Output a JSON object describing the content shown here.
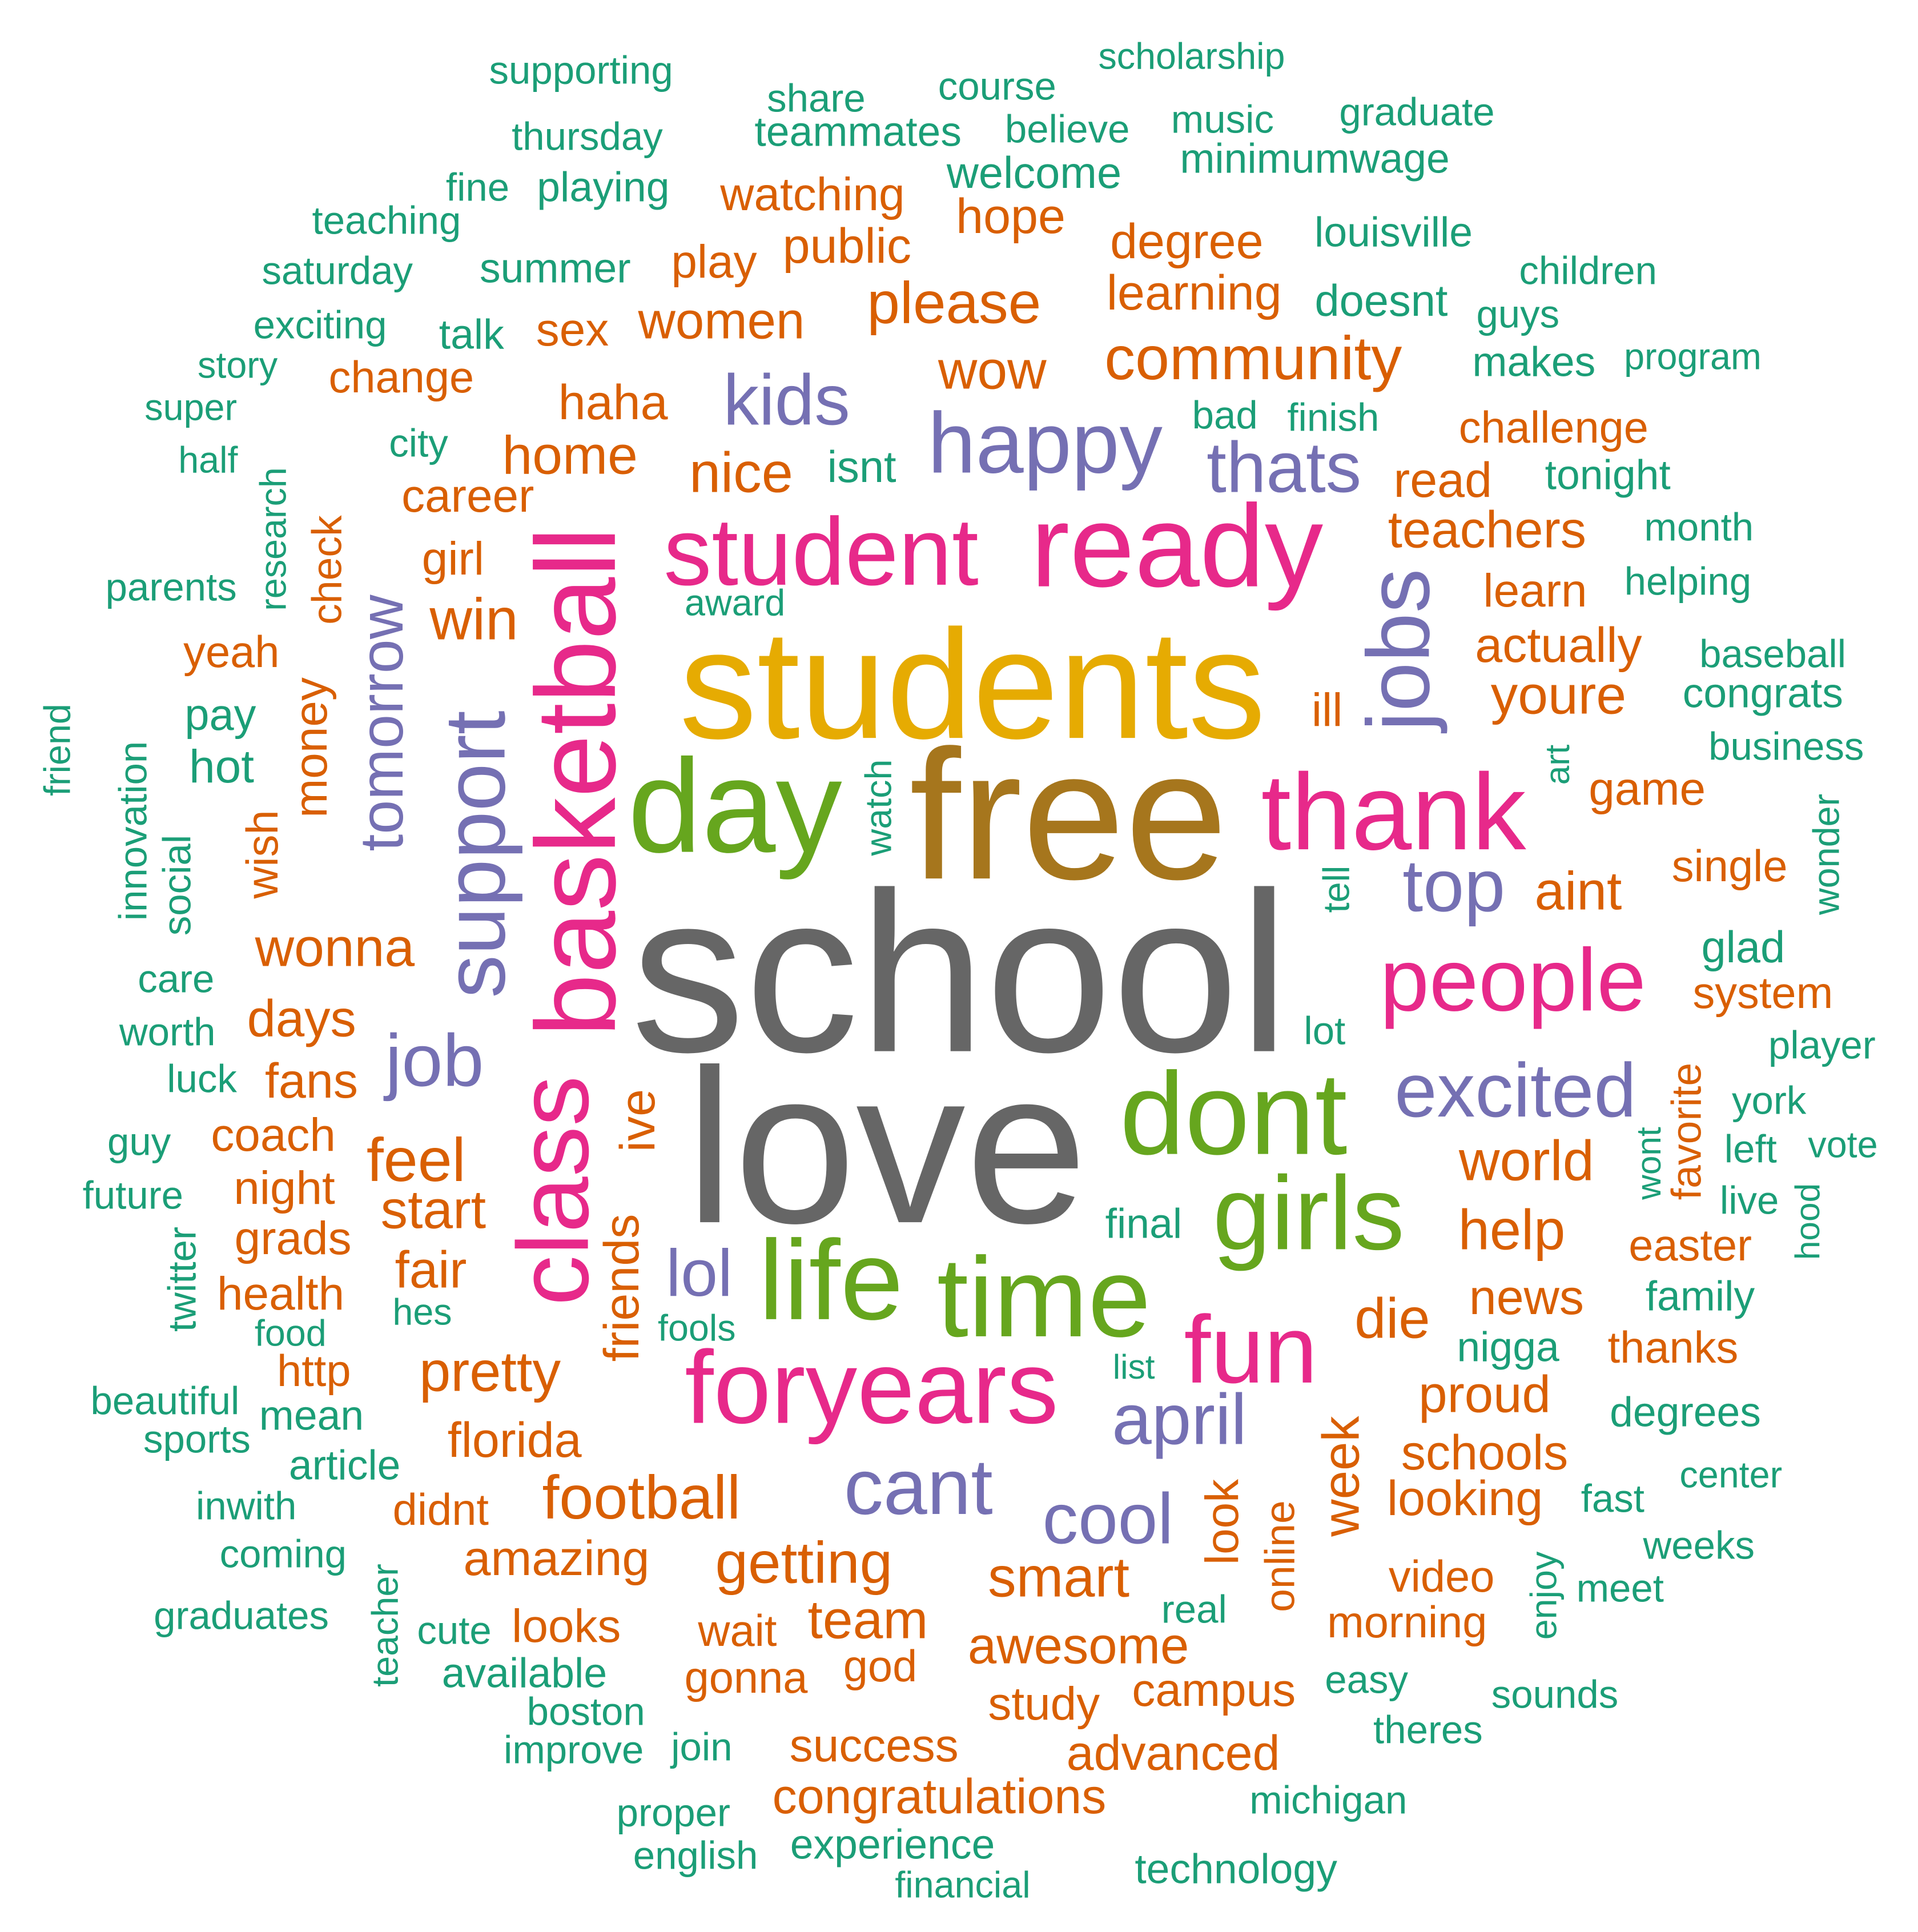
{
  "palette": {
    "gray": "#666666",
    "olive": "#a6761d",
    "gold": "#e6ab02",
    "green": "#66a61e",
    "pink": "#e7298a",
    "purple": "#7570b3",
    "orange": "#d95f02",
    "teal": "#1b9e77"
  },
  "words": [
    {
      "text": "school",
      "color": "gray"
    },
    {
      "text": "love",
      "color": "gray"
    },
    {
      "text": "free",
      "color": "olive"
    },
    {
      "text": "students",
      "color": "gold"
    },
    {
      "text": "day",
      "color": "green"
    },
    {
      "text": "dont",
      "color": "green"
    },
    {
      "text": "girls",
      "color": "green"
    },
    {
      "text": "life",
      "color": "green"
    },
    {
      "text": "time",
      "color": "green"
    },
    {
      "text": "ready",
      "color": "pink"
    },
    {
      "text": "student",
      "color": "pink"
    },
    {
      "text": "thank",
      "color": "pink"
    },
    {
      "text": "people",
      "color": "pink"
    },
    {
      "text": "basketball",
      "color": "pink"
    },
    {
      "text": "class",
      "color": "pink"
    },
    {
      "text": "foryears",
      "color": "pink"
    },
    {
      "text": "fun",
      "color": "pink"
    },
    {
      "text": "happy",
      "color": "purple"
    },
    {
      "text": "kids",
      "color": "purple"
    },
    {
      "text": "thats",
      "color": "purple"
    },
    {
      "text": "jobs",
      "color": "purple"
    },
    {
      "text": "support",
      "color": "purple"
    },
    {
      "text": "tomorrow",
      "color": "purple"
    },
    {
      "text": "job",
      "color": "purple"
    },
    {
      "text": "top",
      "color": "purple"
    },
    {
      "text": "excited",
      "color": "purple"
    },
    {
      "text": "lol",
      "color": "purple"
    },
    {
      "text": "april",
      "color": "purple"
    },
    {
      "text": "cant",
      "color": "purple"
    },
    {
      "text": "cool",
      "color": "purple"
    },
    {
      "text": "watching",
      "color": "orange"
    },
    {
      "text": "hope",
      "color": "orange"
    },
    {
      "text": "degree",
      "color": "orange"
    },
    {
      "text": "play",
      "color": "orange"
    },
    {
      "text": "public",
      "color": "orange"
    },
    {
      "text": "please",
      "color": "orange"
    },
    {
      "text": "learning",
      "color": "orange"
    },
    {
      "text": "sex",
      "color": "orange"
    },
    {
      "text": "women",
      "color": "orange"
    },
    {
      "text": "change",
      "color": "orange"
    },
    {
      "text": "community",
      "color": "orange"
    },
    {
      "text": "wow",
      "color": "orange"
    },
    {
      "text": "haha",
      "color": "orange"
    },
    {
      "text": "challenge",
      "color": "orange"
    },
    {
      "text": "home",
      "color": "orange"
    },
    {
      "text": "nice",
      "color": "orange"
    },
    {
      "text": "read",
      "color": "orange"
    },
    {
      "text": "career",
      "color": "orange"
    },
    {
      "text": "teachers",
      "color": "orange"
    },
    {
      "text": "girl",
      "color": "orange"
    },
    {
      "text": "learn",
      "color": "orange"
    },
    {
      "text": "win",
      "color": "orange"
    },
    {
      "text": "actually",
      "color": "orange"
    },
    {
      "text": "yeah",
      "color": "orange"
    },
    {
      "text": "check",
      "color": "orange"
    },
    {
      "text": "youre",
      "color": "orange"
    },
    {
      "text": "ill",
      "color": "orange"
    },
    {
      "text": "money",
      "color": "orange"
    },
    {
      "text": "game",
      "color": "orange"
    },
    {
      "text": "wish",
      "color": "orange"
    },
    {
      "text": "aint",
      "color": "orange"
    },
    {
      "text": "single",
      "color": "orange"
    },
    {
      "text": "wonna",
      "color": "orange"
    },
    {
      "text": "system",
      "color": "orange"
    },
    {
      "text": "days",
      "color": "orange"
    },
    {
      "text": "fans",
      "color": "orange"
    },
    {
      "text": "favorite",
      "color": "orange"
    },
    {
      "text": "coach",
      "color": "orange"
    },
    {
      "text": "ive",
      "color": "orange"
    },
    {
      "text": "feel",
      "color": "orange"
    },
    {
      "text": "world",
      "color": "orange"
    },
    {
      "text": "night",
      "color": "orange"
    },
    {
      "text": "start",
      "color": "orange"
    },
    {
      "text": "help",
      "color": "orange"
    },
    {
      "text": "grads",
      "color": "orange"
    },
    {
      "text": "friends",
      "color": "orange"
    },
    {
      "text": "easter",
      "color": "orange"
    },
    {
      "text": "fair",
      "color": "orange"
    },
    {
      "text": "health",
      "color": "orange"
    },
    {
      "text": "news",
      "color": "orange"
    },
    {
      "text": "die",
      "color": "orange"
    },
    {
      "text": "http",
      "color": "orange"
    },
    {
      "text": "pretty",
      "color": "orange"
    },
    {
      "text": "thanks",
      "color": "orange"
    },
    {
      "text": "proud",
      "color": "orange"
    },
    {
      "text": "florida",
      "color": "orange"
    },
    {
      "text": "week",
      "color": "orange"
    },
    {
      "text": "schools",
      "color": "orange"
    },
    {
      "text": "football",
      "color": "orange"
    },
    {
      "text": "didnt",
      "color": "orange"
    },
    {
      "text": "looking",
      "color": "orange"
    },
    {
      "text": "look",
      "color": "orange"
    },
    {
      "text": "online",
      "color": "orange"
    },
    {
      "text": "amazing",
      "color": "orange"
    },
    {
      "text": "getting",
      "color": "orange"
    },
    {
      "text": "smart",
      "color": "orange"
    },
    {
      "text": "video",
      "color": "orange"
    },
    {
      "text": "looks",
      "color": "orange"
    },
    {
      "text": "wait",
      "color": "orange"
    },
    {
      "text": "team",
      "color": "orange"
    },
    {
      "text": "morning",
      "color": "orange"
    },
    {
      "text": "awesome",
      "color": "orange"
    },
    {
      "text": "gonna",
      "color": "orange"
    },
    {
      "text": "god",
      "color": "orange"
    },
    {
      "text": "campus",
      "color": "orange"
    },
    {
      "text": "study",
      "color": "orange"
    },
    {
      "text": "success",
      "color": "orange"
    },
    {
      "text": "advanced",
      "color": "orange"
    },
    {
      "text": "congratulations",
      "color": "orange"
    },
    {
      "text": "supporting",
      "color": "teal"
    },
    {
      "text": "share",
      "color": "teal"
    },
    {
      "text": "course",
      "color": "teal"
    },
    {
      "text": "scholarship",
      "color": "teal"
    },
    {
      "text": "thursday",
      "color": "teal"
    },
    {
      "text": "teammates",
      "color": "teal"
    },
    {
      "text": "believe",
      "color": "teal"
    },
    {
      "text": "music",
      "color": "teal"
    },
    {
      "text": "graduate",
      "color": "teal"
    },
    {
      "text": "minimumwage",
      "color": "teal"
    },
    {
      "text": "fine",
      "color": "teal"
    },
    {
      "text": "playing",
      "color": "teal"
    },
    {
      "text": "welcome",
      "color": "teal"
    },
    {
      "text": "teaching",
      "color": "teal"
    },
    {
      "text": "louisville",
      "color": "teal"
    },
    {
      "text": "saturday",
      "color": "teal"
    },
    {
      "text": "summer",
      "color": "teal"
    },
    {
      "text": "children",
      "color": "teal"
    },
    {
      "text": "doesnt",
      "color": "teal"
    },
    {
      "text": "exciting",
      "color": "teal"
    },
    {
      "text": "talk",
      "color": "teal"
    },
    {
      "text": "guys",
      "color": "teal"
    },
    {
      "text": "story",
      "color": "teal"
    },
    {
      "text": "makes",
      "color": "teal"
    },
    {
      "text": "program",
      "color": "teal"
    },
    {
      "text": "super",
      "color": "teal"
    },
    {
      "text": "bad",
      "color": "teal"
    },
    {
      "text": "finish",
      "color": "teal"
    },
    {
      "text": "half",
      "color": "teal"
    },
    {
      "text": "city",
      "color": "teal"
    },
    {
      "text": "isnt",
      "color": "teal"
    },
    {
      "text": "tonight",
      "color": "teal"
    },
    {
      "text": "research",
      "color": "teal"
    },
    {
      "text": "month",
      "color": "teal"
    },
    {
      "text": "parents",
      "color": "teal"
    },
    {
      "text": "helping",
      "color": "teal"
    },
    {
      "text": "award",
      "color": "teal"
    },
    {
      "text": "baseball",
      "color": "teal"
    },
    {
      "text": "friend",
      "color": "teal"
    },
    {
      "text": "congrats",
      "color": "teal"
    },
    {
      "text": "pay",
      "color": "teal"
    },
    {
      "text": "innovation",
      "color": "teal"
    },
    {
      "text": "business",
      "color": "teal"
    },
    {
      "text": "hot",
      "color": "teal"
    },
    {
      "text": "watch",
      "color": "teal"
    },
    {
      "text": "art",
      "color": "teal"
    },
    {
      "text": "social",
      "color": "teal"
    },
    {
      "text": "wonder",
      "color": "teal"
    },
    {
      "text": "tell",
      "color": "teal"
    },
    {
      "text": "care",
      "color": "teal"
    },
    {
      "text": "glad",
      "color": "teal"
    },
    {
      "text": "worth",
      "color": "teal"
    },
    {
      "text": "lot",
      "color": "teal"
    },
    {
      "text": "player",
      "color": "teal"
    },
    {
      "text": "luck",
      "color": "teal"
    },
    {
      "text": "york",
      "color": "teal"
    },
    {
      "text": "guy",
      "color": "teal"
    },
    {
      "text": "left",
      "color": "teal"
    },
    {
      "text": "vote",
      "color": "teal"
    },
    {
      "text": "wont",
      "color": "teal"
    },
    {
      "text": "future",
      "color": "teal"
    },
    {
      "text": "live",
      "color": "teal"
    },
    {
      "text": "hood",
      "color": "teal"
    },
    {
      "text": "final",
      "color": "teal"
    },
    {
      "text": "twitter",
      "color": "teal"
    },
    {
      "text": "family",
      "color": "teal"
    },
    {
      "text": "hes",
      "color": "teal"
    },
    {
      "text": "food",
      "color": "teal"
    },
    {
      "text": "fools",
      "color": "teal"
    },
    {
      "text": "nigga",
      "color": "teal"
    },
    {
      "text": "list",
      "color": "teal"
    },
    {
      "text": "beautiful",
      "color": "teal"
    },
    {
      "text": "mean",
      "color": "teal"
    },
    {
      "text": "degrees",
      "color": "teal"
    },
    {
      "text": "sports",
      "color": "teal"
    },
    {
      "text": "article",
      "color": "teal"
    },
    {
      "text": "center",
      "color": "teal"
    },
    {
      "text": "inwith",
      "color": "teal"
    },
    {
      "text": "fast",
      "color": "teal"
    },
    {
      "text": "coming",
      "color": "teal"
    },
    {
      "text": "weeks",
      "color": "teal"
    },
    {
      "text": "enjoy",
      "color": "teal"
    },
    {
      "text": "teacher",
      "color": "teal"
    },
    {
      "text": "meet",
      "color": "teal"
    },
    {
      "text": "graduates",
      "color": "teal"
    },
    {
      "text": "real",
      "color": "teal"
    },
    {
      "text": "cute",
      "color": "teal"
    },
    {
      "text": "available",
      "color": "teal"
    },
    {
      "text": "easy",
      "color": "teal"
    },
    {
      "text": "sounds",
      "color": "teal"
    },
    {
      "text": "boston",
      "color": "teal"
    },
    {
      "text": "theres",
      "color": "teal"
    },
    {
      "text": "improve",
      "color": "teal"
    },
    {
      "text": "join",
      "color": "teal"
    },
    {
      "text": "michigan",
      "color": "teal"
    },
    {
      "text": "proper",
      "color": "teal"
    },
    {
      "text": "english",
      "color": "teal"
    },
    {
      "text": "experience",
      "color": "teal"
    },
    {
      "text": "technology",
      "color": "teal"
    },
    {
      "text": "financial",
      "color": "teal"
    }
  ]
}
